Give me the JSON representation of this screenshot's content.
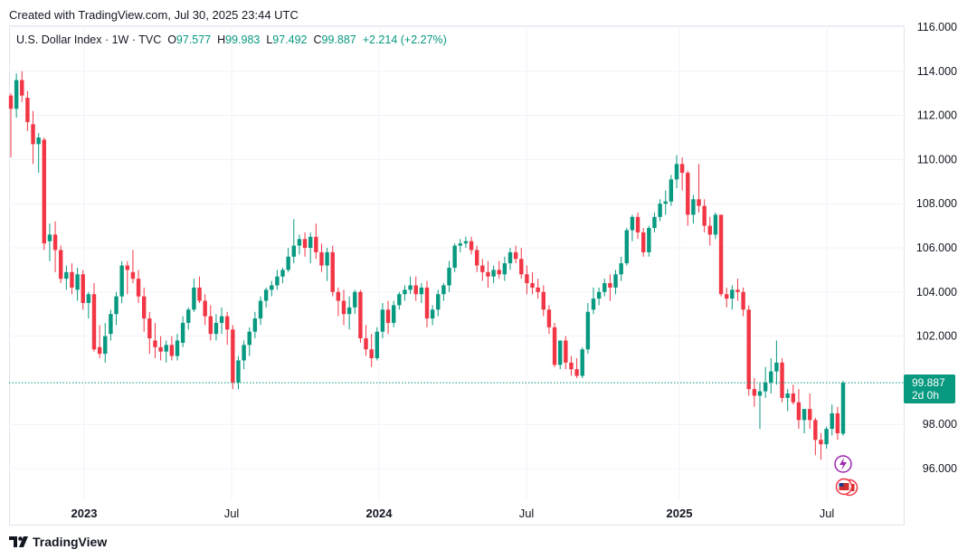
{
  "header": {
    "created": "Created with TradingView.com, Jul 30, 2025 23:44 UTC"
  },
  "legend": {
    "symbol": "U.S. Dollar Index · 1W · TVC",
    "o_label": "O",
    "o": "97.577",
    "h_label": "H",
    "h": "99.983",
    "l_label": "L",
    "l": "97.492",
    "c_label": "C",
    "c": "99.887",
    "change": "+2.214 (+2.27%)"
  },
  "last_price": {
    "value": "99.887",
    "countdown": "2d 0h"
  },
  "footer": {
    "brand": "TradingView",
    "logo_icon": "tradingview-logo-icon"
  },
  "event_icons": [
    "lightning-icon",
    "us-flag-icon"
  ],
  "colors": {
    "up": "#089981",
    "down": "#f23645",
    "grid": "#f0f3fa",
    "axis_text": "#131722"
  },
  "chart_data": {
    "type": "candlestick",
    "symbol": "U.S. Dollar Index",
    "interval": "1W",
    "ylim": [
      94.0,
      116.0
    ],
    "y_ticks": [
      "116.000",
      "114.000",
      "112.000",
      "110.000",
      "108.000",
      "106.000",
      "104.000",
      "102.000",
      "98.000",
      "96.000"
    ],
    "x_ticks": [
      "2023",
      "Jul",
      "2024",
      "Jul",
      "2025",
      "Jul"
    ],
    "grid": true,
    "candles_ohlc": [
      [
        112.9,
        113.0,
        110.1,
        112.3
      ],
      [
        112.3,
        113.9,
        111.9,
        113.6
      ],
      [
        113.6,
        114.0,
        112.6,
        112.9
      ],
      [
        112.8,
        113.1,
        111.3,
        111.7
      ],
      [
        111.6,
        112.2,
        109.8,
        110.7
      ],
      [
        110.7,
        111.2,
        109.4,
        111.0
      ],
      [
        110.9,
        111.0,
        105.9,
        106.2
      ],
      [
        106.3,
        107.1,
        105.4,
        106.6
      ],
      [
        106.6,
        107.2,
        104.9,
        105.9
      ],
      [
        105.9,
        106.1,
        104.4,
        104.6
      ],
      [
        104.6,
        105.2,
        104.1,
        104.9
      ],
      [
        104.9,
        105.3,
        103.9,
        104.2
      ],
      [
        104.1,
        105.1,
        103.6,
        104.8
      ],
      [
        104.8,
        105.0,
        103.2,
        103.5
      ],
      [
        103.5,
        104.0,
        102.8,
        103.9
      ],
      [
        103.9,
        104.4,
        101.3,
        101.4
      ],
      [
        101.5,
        102.5,
        101.0,
        101.2
      ],
      [
        101.2,
        102.6,
        100.8,
        102.0
      ],
      [
        102.1,
        103.2,
        101.8,
        103.0
      ],
      [
        103.0,
        104.0,
        102.5,
        103.8
      ],
      [
        103.8,
        105.4,
        103.5,
        105.2
      ],
      [
        105.2,
        105.4,
        103.9,
        105.0
      ],
      [
        104.9,
        105.9,
        104.4,
        104.6
      ],
      [
        104.6,
        105.0,
        103.5,
        103.8
      ],
      [
        103.8,
        104.2,
        102.2,
        102.8
      ],
      [
        102.8,
        103.1,
        101.2,
        101.9
      ],
      [
        101.8,
        102.6,
        101.0,
        101.5
      ],
      [
        101.5,
        102.0,
        100.9,
        101.3
      ],
      [
        101.3,
        101.8,
        100.8,
        101.6
      ],
      [
        101.6,
        102.0,
        100.9,
        101.1
      ],
      [
        101.1,
        102.1,
        100.9,
        101.8
      ],
      [
        101.7,
        102.9,
        101.5,
        102.6
      ],
      [
        102.6,
        103.3,
        102.3,
        103.2
      ],
      [
        103.2,
        104.6,
        103.1,
        104.2
      ],
      [
        104.2,
        104.7,
        103.5,
        103.6
      ],
      [
        103.6,
        103.9,
        102.5,
        102.9
      ],
      [
        102.9,
        103.4,
        101.8,
        102.1
      ],
      [
        102.1,
        103.0,
        101.8,
        102.6
      ],
      [
        102.6,
        103.3,
        102.1,
        102.9
      ],
      [
        102.9,
        103.1,
        101.6,
        102.3
      ],
      [
        102.3,
        102.5,
        99.6,
        99.9
      ],
      [
        99.9,
        101.1,
        99.6,
        100.9
      ],
      [
        100.9,
        101.8,
        100.5,
        101.6
      ],
      [
        101.6,
        102.4,
        101.1,
        102.2
      ],
      [
        102.2,
        103.1,
        101.9,
        102.8
      ],
      [
        102.8,
        103.8,
        102.5,
        103.6
      ],
      [
        103.6,
        104.2,
        103.3,
        104.1
      ],
      [
        104.1,
        104.5,
        103.8,
        104.3
      ],
      [
        104.3,
        105.0,
        104.1,
        104.7
      ],
      [
        104.7,
        105.1,
        104.4,
        105.0
      ],
      [
        105.0,
        106.0,
        104.9,
        105.6
      ],
      [
        105.6,
        107.3,
        105.3,
        106.1
      ],
      [
        106.1,
        106.6,
        105.7,
        106.4
      ],
      [
        106.4,
        106.7,
        105.6,
        106.0
      ],
      [
        106.0,
        106.7,
        105.3,
        106.5
      ],
      [
        106.5,
        107.1,
        105.5,
        105.8
      ],
      [
        105.8,
        106.2,
        104.9,
        105.2
      ],
      [
        105.2,
        106.0,
        104.5,
        105.8
      ],
      [
        105.8,
        106.1,
        103.8,
        104.0
      ],
      [
        104.0,
        104.2,
        102.9,
        103.6
      ],
      [
        103.6,
        104.1,
        102.5,
        103.0
      ],
      [
        103.0,
        103.8,
        102.3,
        103.3
      ],
      [
        103.3,
        104.1,
        103.0,
        104.0
      ],
      [
        104.0,
        104.1,
        101.7,
        101.9
      ],
      [
        101.9,
        102.5,
        101.1,
        101.4
      ],
      [
        101.4,
        102.1,
        100.6,
        101.0
      ],
      [
        101.0,
        102.4,
        100.9,
        102.2
      ],
      [
        102.2,
        103.5,
        101.9,
        103.2
      ],
      [
        103.2,
        103.6,
        102.1,
        102.6
      ],
      [
        102.6,
        103.6,
        102.4,
        103.4
      ],
      [
        103.4,
        104.0,
        103.2,
        103.9
      ],
      [
        103.9,
        104.3,
        103.6,
        104.1
      ],
      [
        104.1,
        104.7,
        103.9,
        104.3
      ],
      [
        104.3,
        104.7,
        103.6,
        103.9
      ],
      [
        103.9,
        104.4,
        103.5,
        104.2
      ],
      [
        104.2,
        104.5,
        102.4,
        102.8
      ],
      [
        102.8,
        103.4,
        102.5,
        103.2
      ],
      [
        103.2,
        104.1,
        102.9,
        103.9
      ],
      [
        103.9,
        104.4,
        103.6,
        104.3
      ],
      [
        104.3,
        105.4,
        104.0,
        105.1
      ],
      [
        105.1,
        106.2,
        104.9,
        106.1
      ],
      [
        106.1,
        106.4,
        105.8,
        106.2
      ],
      [
        106.2,
        106.5,
        106.0,
        106.3
      ],
      [
        106.3,
        106.5,
        105.7,
        105.9
      ],
      [
        105.9,
        106.1,
        104.9,
        105.2
      ],
      [
        105.2,
        105.5,
        104.5,
        104.9
      ],
      [
        104.9,
        105.4,
        104.2,
        104.7
      ],
      [
        104.7,
        105.2,
        104.4,
        105.0
      ],
      [
        105.0,
        105.4,
        104.6,
        104.8
      ],
      [
        104.8,
        105.6,
        104.5,
        105.3
      ],
      [
        105.3,
        106.0,
        105.0,
        105.8
      ],
      [
        105.8,
        106.1,
        105.3,
        105.5
      ],
      [
        105.5,
        106.0,
        104.6,
        104.8
      ],
      [
        104.8,
        105.2,
        103.9,
        104.4
      ],
      [
        104.4,
        104.9,
        103.9,
        104.2
      ],
      [
        104.2,
        104.6,
        103.7,
        104.0
      ],
      [
        104.0,
        104.3,
        102.9,
        103.2
      ],
      [
        103.2,
        103.4,
        102.1,
        102.4
      ],
      [
        102.4,
        102.6,
        100.6,
        100.7
      ],
      [
        100.7,
        101.6,
        100.5,
        101.8
      ],
      [
        101.8,
        102.0,
        100.5,
        100.8
      ],
      [
        100.8,
        101.1,
        100.2,
        100.5
      ],
      [
        100.5,
        101.0,
        100.1,
        100.2
      ],
      [
        100.2,
        101.5,
        100.1,
        101.4
      ],
      [
        101.4,
        103.5,
        101.2,
        103.1
      ],
      [
        103.2,
        104.2,
        103.0,
        103.7
      ],
      [
        103.7,
        104.2,
        103.4,
        104.0
      ],
      [
        104.0,
        104.6,
        103.8,
        104.4
      ],
      [
        104.4,
        104.8,
        103.6,
        104.2
      ],
      [
        104.2,
        105.0,
        103.9,
        104.8
      ],
      [
        104.8,
        105.6,
        104.5,
        105.3
      ],
      [
        105.3,
        106.9,
        105.2,
        106.8
      ],
      [
        106.8,
        107.5,
        106.3,
        107.4
      ],
      [
        107.4,
        107.6,
        106.4,
        106.7
      ],
      [
        106.7,
        106.9,
        105.6,
        105.8
      ],
      [
        105.8,
        107.0,
        105.6,
        106.9
      ],
      [
        106.9,
        107.6,
        106.7,
        107.4
      ],
      [
        107.4,
        108.2,
        107.2,
        108.0
      ],
      [
        108.0,
        108.6,
        107.5,
        108.1
      ],
      [
        108.1,
        109.3,
        107.9,
        109.1
      ],
      [
        109.1,
        110.2,
        108.7,
        109.8
      ],
      [
        109.8,
        110.1,
        108.6,
        109.4
      ],
      [
        109.4,
        109.5,
        107.0,
        107.5
      ],
      [
        107.5,
        108.4,
        107.1,
        108.2
      ],
      [
        108.2,
        109.8,
        107.6,
        107.9
      ],
      [
        107.9,
        108.2,
        106.7,
        107.0
      ],
      [
        107.0,
        107.4,
        106.1,
        106.6
      ],
      [
        106.6,
        107.6,
        106.4,
        107.5
      ],
      [
        107.5,
        107.5,
        103.8,
        103.9
      ],
      [
        103.9,
        104.2,
        103.3,
        103.7
      ],
      [
        103.7,
        104.3,
        103.2,
        104.1
      ],
      [
        104.1,
        104.6,
        103.6,
        104.0
      ],
      [
        104.0,
        104.2,
        102.9,
        103.2
      ],
      [
        103.2,
        103.4,
        99.3,
        99.6
      ],
      [
        99.6,
        100.1,
        98.8,
        99.3
      ],
      [
        99.3,
        99.9,
        97.8,
        99.5
      ],
      [
        99.5,
        100.6,
        99.2,
        99.9
      ],
      [
        99.9,
        101.0,
        99.4,
        100.4
      ],
      [
        100.4,
        101.8,
        99.8,
        100.8
      ],
      [
        100.8,
        101.0,
        99.0,
        99.2
      ],
      [
        99.2,
        99.6,
        98.6,
        99.4
      ],
      [
        99.4,
        99.8,
        98.9,
        99.0
      ],
      [
        99.0,
        99.6,
        97.8,
        98.2
      ],
      [
        98.2,
        98.5,
        97.6,
        98.7
      ],
      [
        98.7,
        99.4,
        97.8,
        98.2
      ],
      [
        98.2,
        98.3,
        96.6,
        97.3
      ],
      [
        97.3,
        97.6,
        96.4,
        97.1
      ],
      [
        97.1,
        97.9,
        96.9,
        97.8
      ],
      [
        97.8,
        98.9,
        97.5,
        98.5
      ],
      [
        98.5,
        98.8,
        97.3,
        97.6
      ],
      [
        97.577,
        99.983,
        97.492,
        99.887
      ]
    ]
  }
}
